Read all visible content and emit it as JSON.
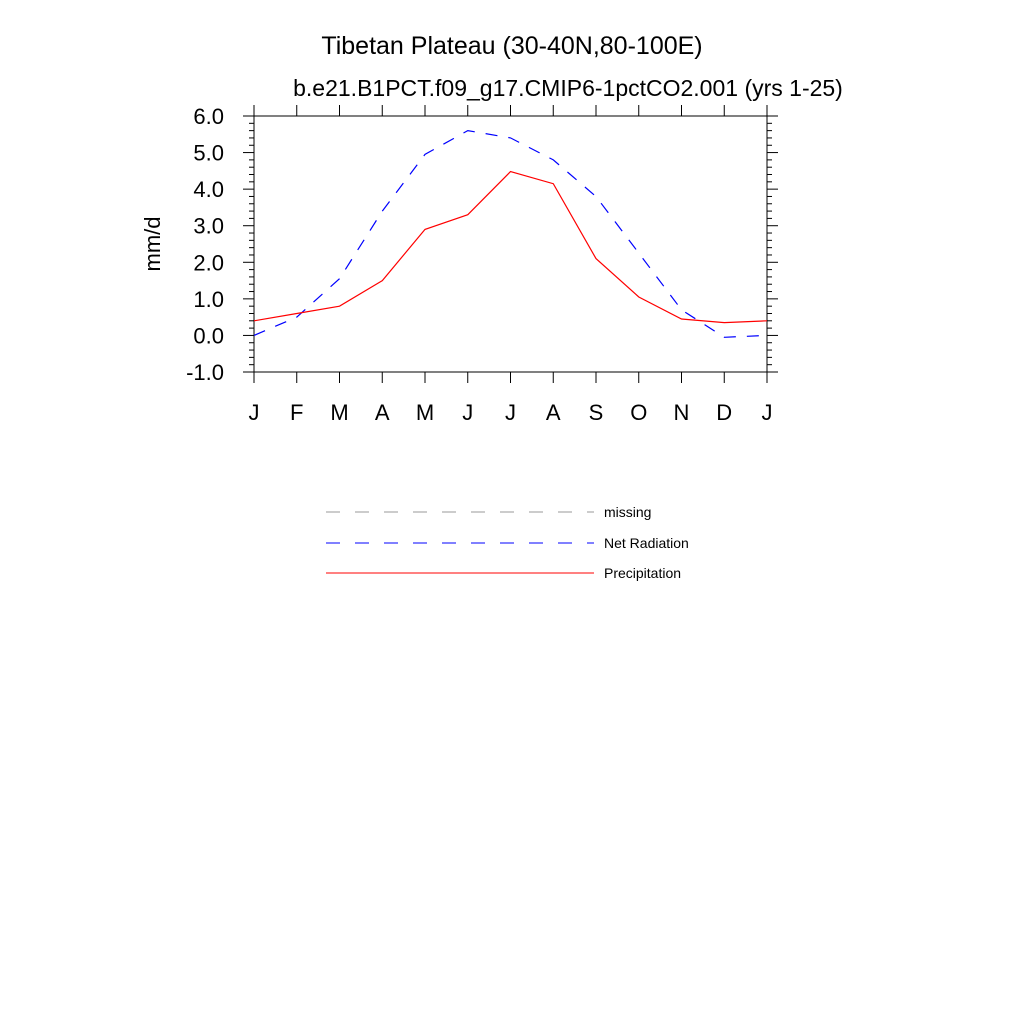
{
  "chart_data": {
    "type": "line",
    "title": "Tibetan Plateau (30-40N,80-100E)",
    "subtitle": "b.e21.B1PCT.f09_g17.CMIP6-1pctCO2.001 (yrs 1-25)",
    "ylabel": "mm/d",
    "xlabel": "",
    "categories": [
      "J",
      "F",
      "M",
      "A",
      "M",
      "J",
      "J",
      "A",
      "S",
      "O",
      "N",
      "D",
      "J"
    ],
    "ylim": [
      -1.0,
      6.0
    ],
    "yticks": [
      "6.0",
      "5.0",
      "4.0",
      "3.0",
      "2.0",
      "1.0",
      "0.0",
      "-1.0"
    ],
    "ytick_values": [
      6,
      5,
      4,
      3,
      2,
      1,
      0,
      -1
    ],
    "grid": false,
    "legend_position": "bottom-center",
    "series": [
      {
        "name": "Net Radiation",
        "color": "#0000ff",
        "style": "dashed",
        "values": [
          0.0,
          0.5,
          1.55,
          3.4,
          4.95,
          5.6,
          5.4,
          4.8,
          3.8,
          2.25,
          0.7,
          -0.05,
          0.0
        ]
      },
      {
        "name": "Precipitation",
        "color": "#ff0000",
        "style": "solid",
        "values": [
          0.4,
          0.6,
          0.8,
          1.5,
          2.9,
          3.3,
          4.48,
          4.15,
          2.1,
          1.05,
          0.45,
          0.35,
          0.4
        ]
      }
    ],
    "legend": [
      {
        "label": "missing",
        "color": "#999999",
        "style": "dashed"
      },
      {
        "label": "Net Radiation",
        "color": "#0000ff",
        "style": "dashed"
      },
      {
        "label": "Precipitation",
        "color": "#ff0000",
        "style": "solid"
      }
    ]
  }
}
